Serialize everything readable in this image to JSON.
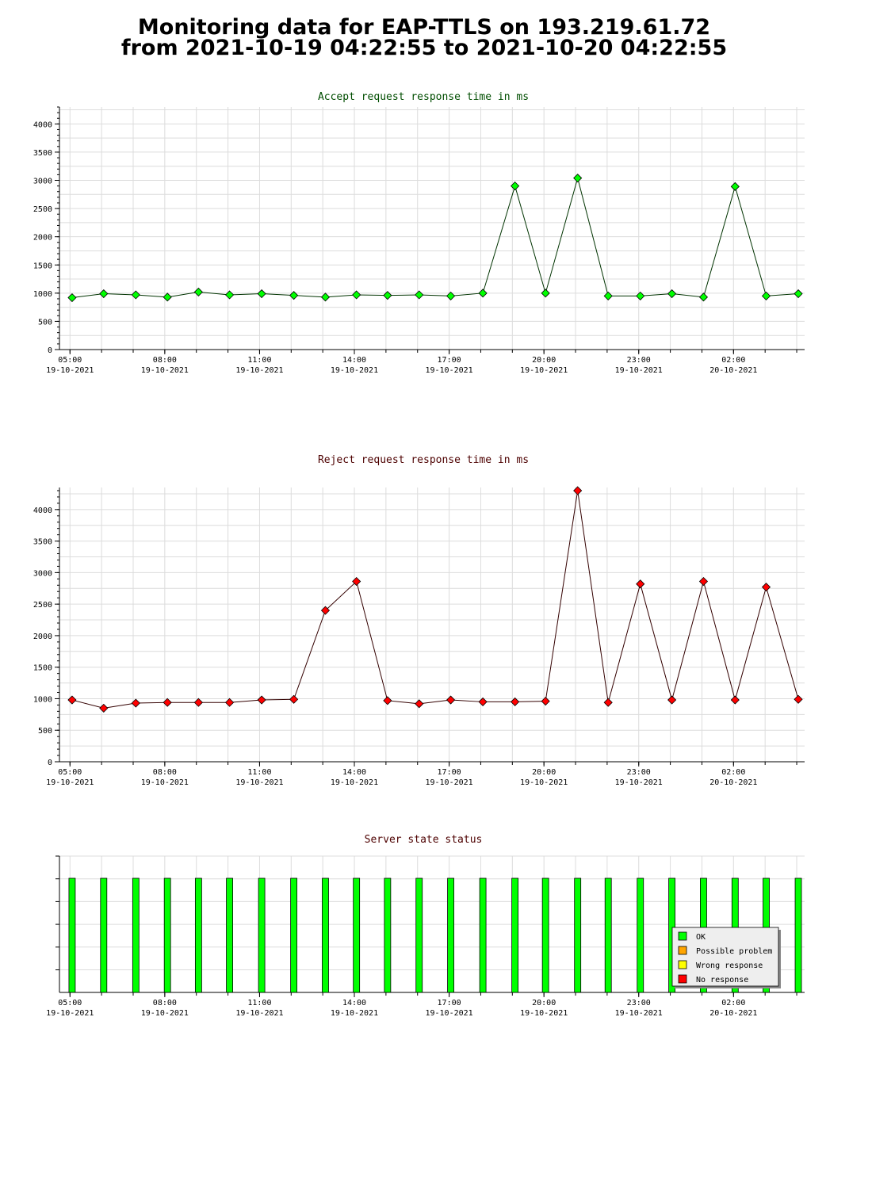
{
  "page": {
    "title_line1": "Monitoring data for EAP-TTLS on 193.219.61.72",
    "title_line2": "from 2021-10-19 04:22:55 to 2021-10-20 04:22:55"
  },
  "chart_data": [
    {
      "type": "line",
      "title": "Accept request response time in ms",
      "title_color": "#004d00",
      "marker_color": "#00ff00",
      "line_color": "#003300",
      "ylim": [
        0,
        4300
      ],
      "yticks": [
        "0",
        "500",
        "1000",
        "1500",
        "2000",
        "2500",
        "3000",
        "3500",
        "4000"
      ],
      "x": [
        "2021-10-19 05:04",
        "2021-10-19 06:04",
        "2021-10-19 07:05",
        "2021-10-19 08:05",
        "2021-10-19 09:04",
        "2021-10-19 10:03",
        "2021-10-19 11:04",
        "2021-10-19 12:05",
        "2021-10-19 13:05",
        "2021-10-19 14:04",
        "2021-10-19 15:03",
        "2021-10-19 16:03",
        "2021-10-19 17:03",
        "2021-10-19 18:04",
        "2021-10-19 19:05",
        "2021-10-19 20:03",
        "2021-10-19 21:04",
        "2021-10-19 22:02",
        "2021-10-19 23:03",
        "2021-10-20 00:03",
        "2021-10-20 01:03",
        "2021-10-20 02:03",
        "2021-10-20 03:02",
        "2021-10-20 04:03"
      ],
      "y": [
        920,
        990,
        970,
        930,
        1020,
        970,
        990,
        960,
        930,
        970,
        960,
        970,
        950,
        1000,
        2900,
        1000,
        3040,
        950,
        950,
        990,
        930,
        2890,
        950,
        990
      ],
      "grid": true
    },
    {
      "type": "line",
      "title": "Reject request response time in ms",
      "title_color": "#4d0000",
      "marker_color": "#ff0000",
      "line_color": "#330000",
      "ylim": [
        0,
        4350
      ],
      "yticks": [
        "0",
        "500",
        "1000",
        "1500",
        "2000",
        "2500",
        "3000",
        "3500",
        "4000"
      ],
      "x": [
        "2021-10-19 05:04",
        "2021-10-19 06:04",
        "2021-10-19 07:05",
        "2021-10-19 08:05",
        "2021-10-19 09:04",
        "2021-10-19 10:03",
        "2021-10-19 11:04",
        "2021-10-19 12:05",
        "2021-10-19 13:05",
        "2021-10-19 14:04",
        "2021-10-19 15:03",
        "2021-10-19 16:03",
        "2021-10-19 17:03",
        "2021-10-19 18:04",
        "2021-10-19 19:05",
        "2021-10-19 20:03",
        "2021-10-19 21:04",
        "2021-10-19 22:02",
        "2021-10-19 23:03",
        "2021-10-20 00:03",
        "2021-10-20 01:03",
        "2021-10-20 02:03",
        "2021-10-20 03:02",
        "2021-10-20 04:03"
      ],
      "y": [
        980,
        850,
        930,
        940,
        940,
        940,
        980,
        990,
        2400,
        2860,
        970,
        920,
        980,
        950,
        950,
        960,
        4300,
        940,
        2820,
        980,
        2860,
        980,
        2770,
        990
      ],
      "grid": true
    },
    {
      "type": "bar",
      "title": "Server state status",
      "title_color": "#4d0000",
      "x": [
        "2021-10-19 05:04",
        "2021-10-19 06:04",
        "2021-10-19 07:05",
        "2021-10-19 08:05",
        "2021-10-19 09:04",
        "2021-10-19 10:03",
        "2021-10-19 11:04",
        "2021-10-19 12:05",
        "2021-10-19 13:05",
        "2021-10-19 14:04",
        "2021-10-19 15:03",
        "2021-10-19 16:03",
        "2021-10-19 17:03",
        "2021-10-19 18:04",
        "2021-10-19 19:05",
        "2021-10-19 20:03",
        "2021-10-19 21:04",
        "2021-10-19 22:02",
        "2021-10-19 23:03",
        "2021-10-20 00:03",
        "2021-10-20 01:03",
        "2021-10-20 02:03",
        "2021-10-20 03:02",
        "2021-10-20 04:03"
      ],
      "states": [
        "OK",
        "OK",
        "OK",
        "OK",
        "OK",
        "OK",
        "OK",
        "OK",
        "OK",
        "OK",
        "OK",
        "OK",
        "OK",
        "OK",
        "OK",
        "OK",
        "OK",
        "OK",
        "OK",
        "OK",
        "OK",
        "OK",
        "OK",
        "OK"
      ],
      "legend": [
        {
          "label": "OK",
          "color": "#00ff00"
        },
        {
          "label": "Possible problem",
          "color": "#ffa500"
        },
        {
          "label": "Wrong response",
          "color": "#ffff00"
        },
        {
          "label": "No response",
          "color": "#ff0000"
        }
      ],
      "legend_placement": "bottom-right",
      "grid": true
    }
  ],
  "x_axis": {
    "range_start": "2021-10-19 04:40",
    "range_end": "2021-10-20 04:15",
    "tick_labels": [
      {
        "time": "05:00",
        "date": "19-10-2021",
        "at": "2021-10-19 05:00"
      },
      {
        "time": "08:00",
        "date": "19-10-2021",
        "at": "2021-10-19 08:00"
      },
      {
        "time": "11:00",
        "date": "19-10-2021",
        "at": "2021-10-19 11:00"
      },
      {
        "time": "14:00",
        "date": "19-10-2021",
        "at": "2021-10-19 14:00"
      },
      {
        "time": "17:00",
        "date": "19-10-2021",
        "at": "2021-10-19 17:00"
      },
      {
        "time": "20:00",
        "date": "19-10-2021",
        "at": "2021-10-19 20:00"
      },
      {
        "time": "23:00",
        "date": "19-10-2021",
        "at": "2021-10-19 23:00"
      },
      {
        "time": "02:00",
        "date": "20-10-2021",
        "at": "2021-10-20 02:00"
      }
    ]
  }
}
